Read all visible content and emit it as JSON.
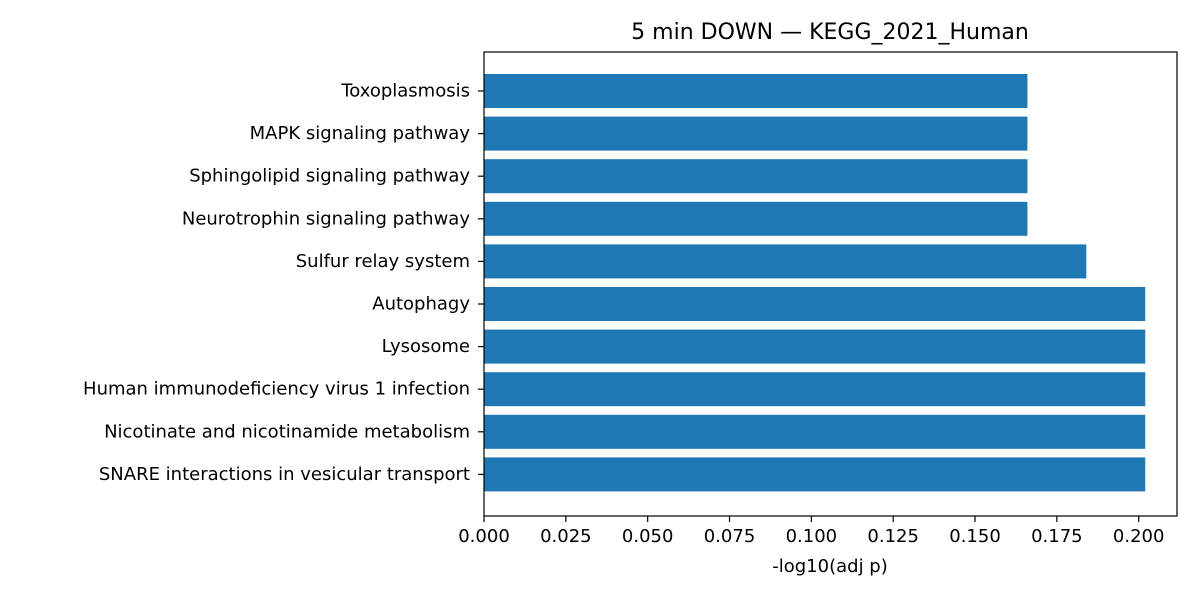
{
  "chart_data": {
    "type": "bar",
    "orientation": "horizontal",
    "title": "5 min DOWN — KEGG_2021_Human",
    "xlabel": "-log10(adj p)",
    "ylabel": "",
    "categories": [
      "Toxoplasmosis",
      "MAPK signaling pathway",
      "Sphingolipid signaling pathway",
      "Neurotrophin signaling pathway",
      "Sulfur relay system",
      "Autophagy",
      "Lysosome",
      "Human immunodeficiency virus 1 infection",
      "Nicotinate and nicotinamide metabolism",
      "SNARE interactions in vesicular transport"
    ],
    "values": [
      0.166,
      0.166,
      0.166,
      0.166,
      0.184,
      0.202,
      0.202,
      0.202,
      0.202,
      0.202
    ],
    "xlim": [
      0,
      0.2117
    ],
    "xticks": [
      0.0,
      0.025,
      0.05,
      0.075,
      0.1,
      0.125,
      0.15,
      0.175,
      0.2
    ],
    "xtick_labels": [
      "0.000",
      "0.025",
      "0.050",
      "0.075",
      "0.100",
      "0.125",
      "0.150",
      "0.175",
      "0.200"
    ],
    "bar_color": "#1f77b4",
    "grid": false,
    "legend": "none"
  }
}
